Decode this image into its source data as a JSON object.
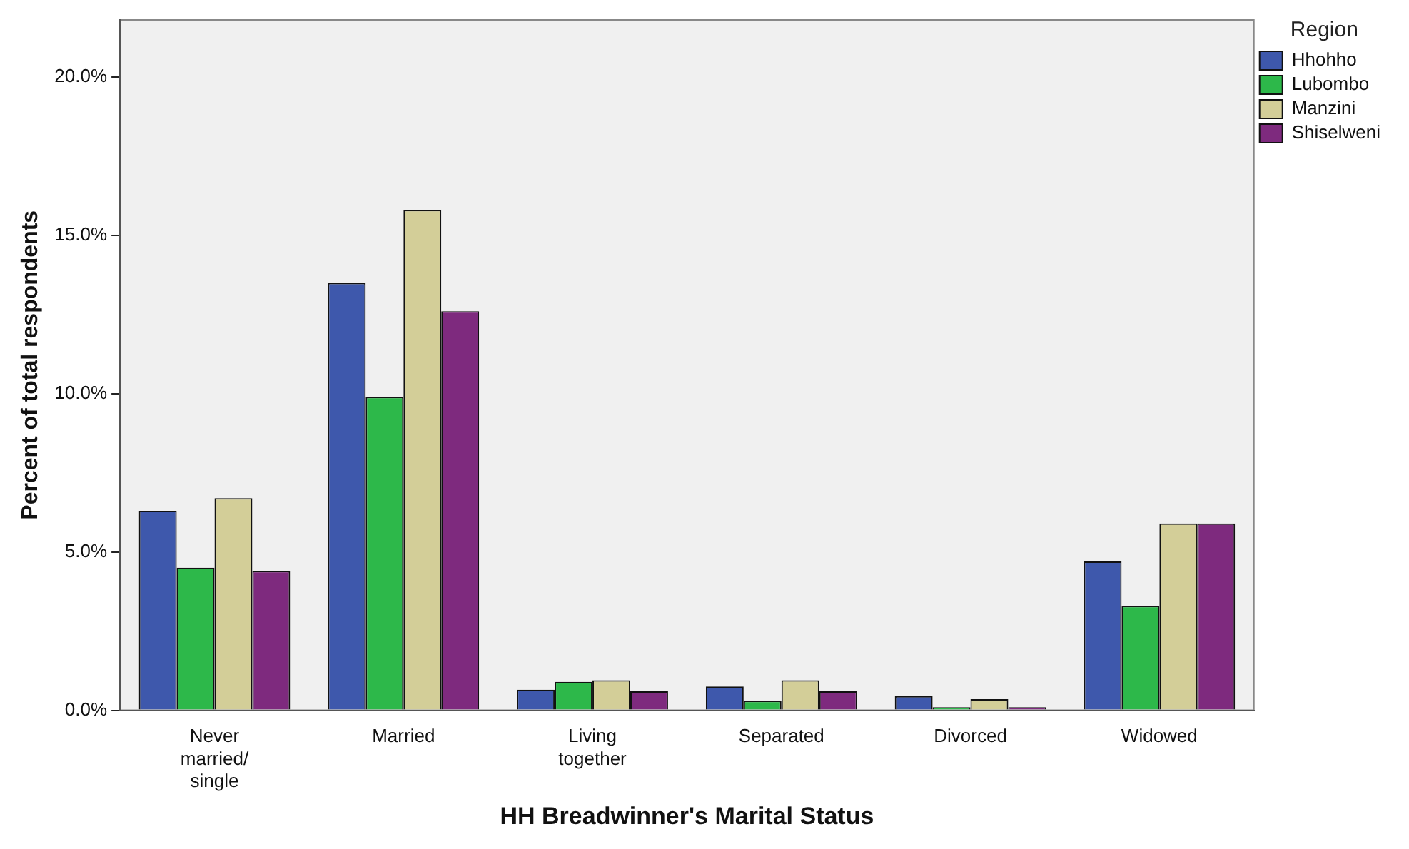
{
  "chart_data": {
    "type": "bar",
    "xlabel": "HH Breadwinner's Marital Status",
    "ylabel": "Percent of total respondents",
    "legend_title": "Region",
    "legend": "right",
    "categories": [
      [
        "Never",
        "married/",
        "single"
      ],
      "Married",
      [
        "Living",
        "together"
      ],
      "Separated",
      "Divorced",
      "Widowed"
    ],
    "series": [
      {
        "name": "Hhohho",
        "color": "#3e58ac",
        "values": [
          6.3,
          13.5,
          0.65,
          0.75,
          0.45,
          4.7
        ]
      },
      {
        "name": "Lubombo",
        "color": "#2db84a",
        "values": [
          4.5,
          9.9,
          0.9,
          0.3,
          0.1,
          3.3
        ]
      },
      {
        "name": "Manzini",
        "color": "#d3ce98",
        "values": [
          6.7,
          15.8,
          0.95,
          0.95,
          0.35,
          5.9
        ]
      },
      {
        "name": "Shiselweni",
        "color": "#7e2a7e",
        "values": [
          4.4,
          12.6,
          0.6,
          0.6,
          0.1,
          5.9
        ]
      }
    ],
    "ylim": [
      0,
      21.8
    ],
    "yticks": [
      {
        "value": 0,
        "label": "0.0%"
      },
      {
        "value": 5,
        "label": "5.0%"
      },
      {
        "value": 10,
        "label": "10.0%"
      },
      {
        "value": 15,
        "label": "15.0%"
      },
      {
        "value": 20,
        "label": "20.0%"
      }
    ],
    "grid": false
  }
}
